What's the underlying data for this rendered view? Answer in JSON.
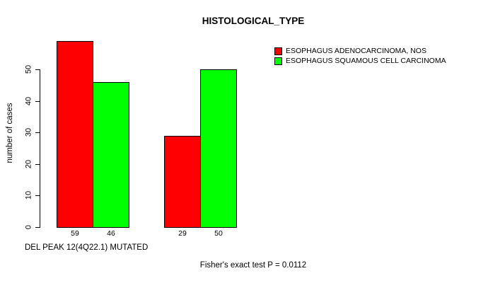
{
  "chart_data": {
    "type": "bar",
    "title": "HISTOLOGICAL_TYPE",
    "ylabel": "number of cases",
    "xlabel": "DEL PEAK 12(4Q22.1) MUTATED",
    "footnote": "Fisher's exact test P = 0.0112",
    "ylim": [
      0,
      50
    ],
    "yticks": [
      0,
      10,
      20,
      30,
      40,
      50
    ],
    "num_groups": 2,
    "series": [
      {
        "name": "ESOPHAGUS ADENOCARCINOMA, NOS",
        "color": "#ff0000",
        "values": [
          59,
          29
        ]
      },
      {
        "name": "ESOPHAGUS SQUAMOUS CELL CARCINOMA",
        "color": "#00ff00",
        "values": [
          46,
          50
        ]
      }
    ],
    "bar_value_labels_shown": true,
    "legend_position": "top-right",
    "grid": false,
    "colors": {
      "background": "#ffffff",
      "axis": "#000000",
      "text": "#000000",
      "series_red": "#ff0000",
      "series_green": "#00ff00"
    }
  }
}
